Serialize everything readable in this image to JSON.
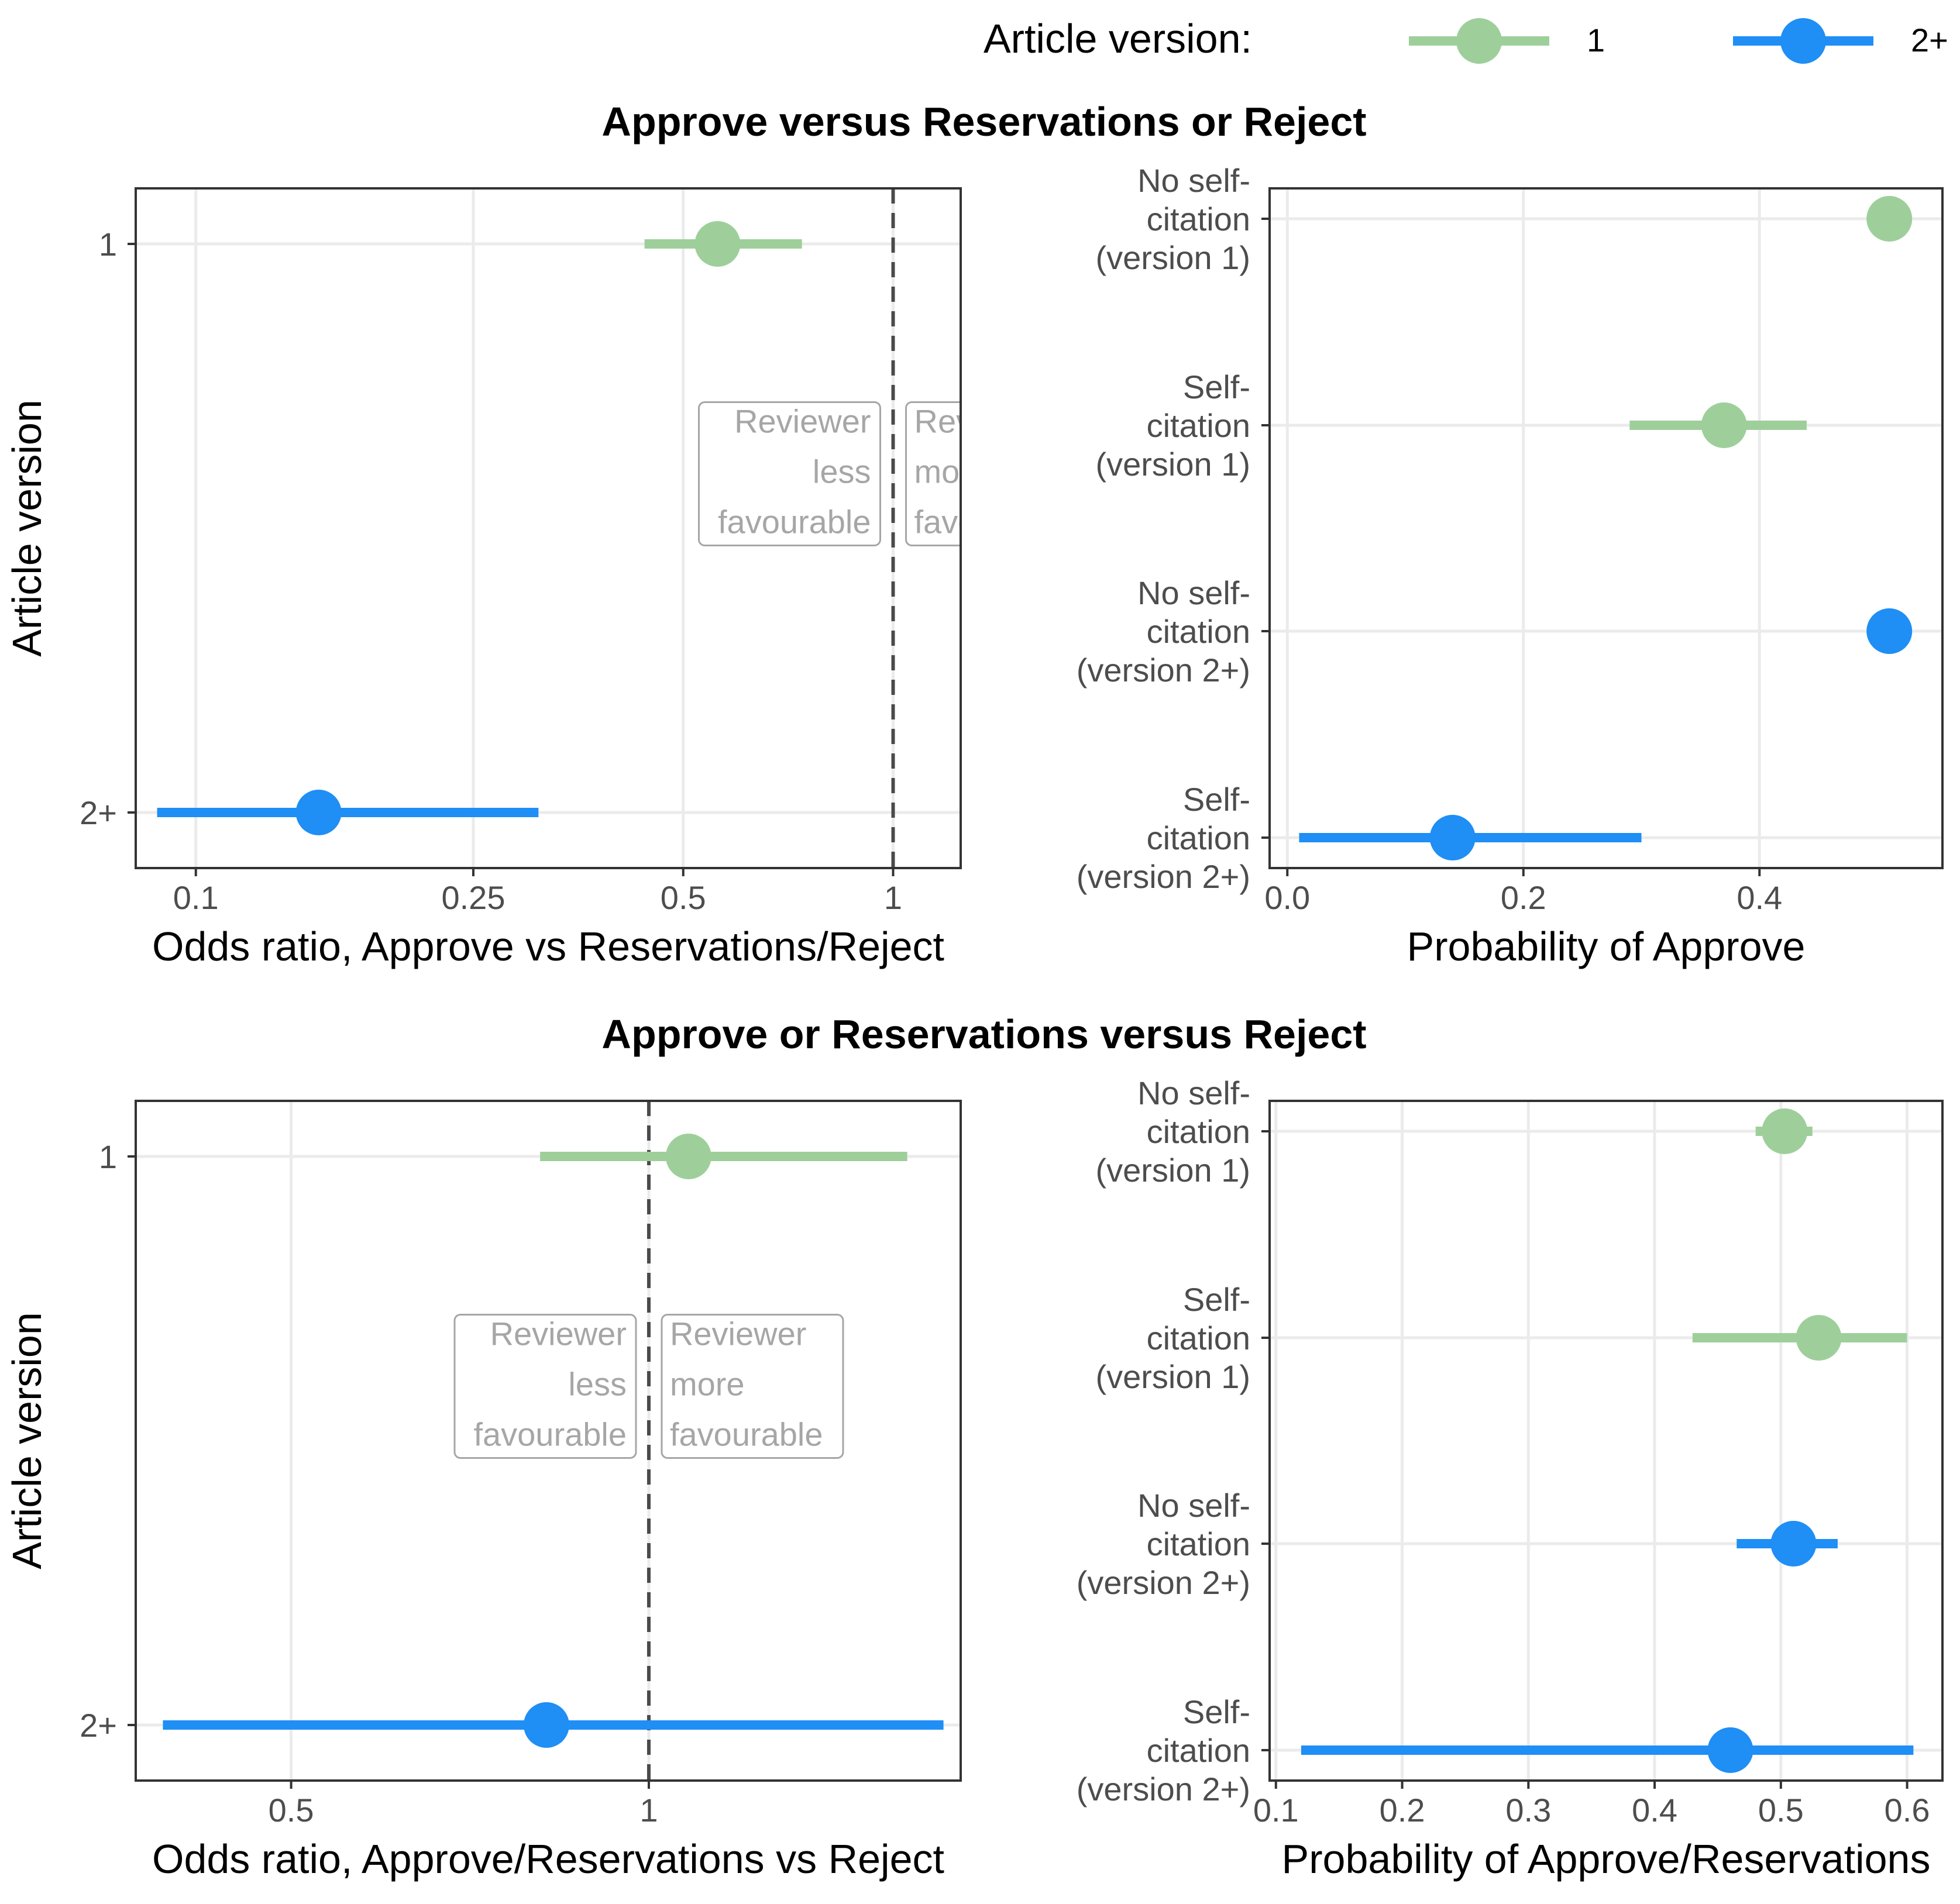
{
  "legend": {
    "title": "Article version:",
    "entries": [
      {
        "label": "1",
        "color": "#9ecf9b"
      },
      {
        "label": "2+",
        "color": "#1f8ef5"
      }
    ]
  },
  "sections": [
    {
      "title": "Approve versus Reservations or Reject"
    },
    {
      "title": "Approve or Reservations versus Reject"
    }
  ],
  "annotations": {
    "less": [
      "Reviewer",
      "less",
      "favourable"
    ],
    "more": [
      "Reviewer",
      "more",
      "favourable"
    ]
  },
  "chart_data": [
    {
      "type": "forest",
      "xlabel": "Odds ratio, Approve vs Reservations/Reject",
      "ylabel": "Article version",
      "x_scale": "log",
      "xlim": [
        0.082,
        1.25
      ],
      "x_ticks": [
        0.1,
        0.25,
        0.5,
        1
      ],
      "x_tick_labels": [
        "0.1",
        "0.25",
        "0.5",
        "1"
      ],
      "reference_line": 1,
      "categories": [
        "1",
        "2+"
      ],
      "series": [
        {
          "category": "1",
          "estimate": 0.56,
          "lower": 0.44,
          "upper": 0.74
        },
        {
          "category": "2+",
          "estimate": 0.15,
          "lower": 0.088,
          "upper": 0.31
        }
      ]
    },
    {
      "type": "forest",
      "xlabel": "Probability of Approve",
      "ylabel": "",
      "xlim": [
        -0.015,
        0.555
      ],
      "x_ticks": [
        0,
        0.2,
        0.4
      ],
      "x_tick_labels": [
        "0.0",
        "0.2",
        "0.4"
      ],
      "categories": [
        "No self-citation (version 1)",
        "Self-citation (version 1)",
        "No self-citation (version 2+)",
        "Self-citation (version 2+)"
      ],
      "category_lines": [
        [
          "No self-",
          "citation",
          "(version 1)"
        ],
        [
          "Self-",
          "citation",
          "(version 1)"
        ],
        [
          "No self-",
          "citation",
          "(version 2+)"
        ],
        [
          "Self-",
          "citation",
          "(version 2+)"
        ]
      ],
      "series": [
        {
          "category": "No self-citation (version 1)",
          "version": "1",
          "estimate": 0.51,
          "lower": 0.51,
          "upper": 0.51
        },
        {
          "category": "Self-citation (version 1)",
          "version": "1",
          "estimate": 0.37,
          "lower": 0.29,
          "upper": 0.44
        },
        {
          "category": "No self-citation (version 2+)",
          "version": "2+",
          "estimate": 0.51,
          "lower": 0.5,
          "upper": 0.51
        },
        {
          "category": "Self-citation (version 2+)",
          "version": "2+",
          "estimate": 0.14,
          "lower": 0.01,
          "upper": 0.3
        }
      ]
    },
    {
      "type": "forest",
      "xlabel": "Odds ratio, Approve/Reservations vs Reject",
      "ylabel": "Article version",
      "x_scale": "log",
      "xlim": [
        0.37,
        1.83
      ],
      "x_ticks": [
        0.5,
        1
      ],
      "x_tick_labels": [
        "0.5",
        "1"
      ],
      "reference_line": 1,
      "categories": [
        "1",
        "2+"
      ],
      "series": [
        {
          "category": "1",
          "estimate": 1.08,
          "lower": 0.81,
          "upper": 1.65
        },
        {
          "category": "2+",
          "estimate": 0.82,
          "lower": 0.39,
          "upper": 1.77
        }
      ]
    },
    {
      "type": "forest",
      "xlabel": "Probability of Approve/Reservations",
      "ylabel": "",
      "xlim": [
        0.095,
        0.628
      ],
      "x_ticks": [
        0.1,
        0.2,
        0.3,
        0.4,
        0.5,
        0.6
      ],
      "x_tick_labels": [
        "0.1",
        "0.2",
        "0.3",
        "0.4",
        "0.5",
        "0.6"
      ],
      "categories": [
        "No self-citation (version 1)",
        "Self-citation (version 1)",
        "No self-citation (version 2+)",
        "Self-citation (version 2+)"
      ],
      "category_lines": [
        [
          "No self-",
          "citation",
          "(version 1)"
        ],
        [
          "Self-",
          "citation",
          "(version 1)"
        ],
        [
          "No self-",
          "citation",
          "(version 2+)"
        ],
        [
          "Self-",
          "citation",
          "(version 2+)"
        ]
      ],
      "series": [
        {
          "category": "No self-citation (version 1)",
          "version": "1",
          "estimate": 0.503,
          "lower": 0.48,
          "upper": 0.525
        },
        {
          "category": "Self-citation (version 1)",
          "version": "1",
          "estimate": 0.53,
          "lower": 0.43,
          "upper": 0.6
        },
        {
          "category": "No self-citation (version 2+)",
          "version": "2+",
          "estimate": 0.51,
          "lower": 0.465,
          "upper": 0.545
        },
        {
          "category": "Self-citation (version 2+)",
          "version": "2+",
          "estimate": 0.46,
          "lower": 0.12,
          "upper": 0.605
        }
      ]
    }
  ]
}
